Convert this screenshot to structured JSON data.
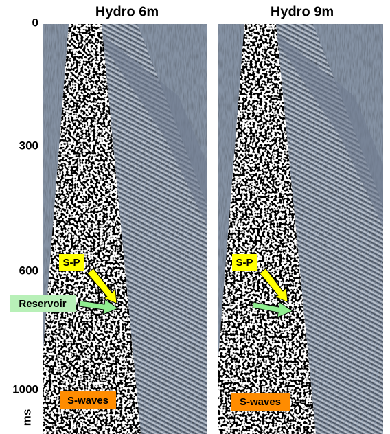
{
  "panels": [
    {
      "title": "Hydro 6m",
      "labels": {
        "sp": "S-P",
        "reservoir": "Reservoir",
        "swaves": "S-waves"
      }
    },
    {
      "title": "Hydro 9m",
      "labels": {
        "sp": "S-P",
        "swaves": "S-waves"
      }
    }
  ],
  "y_axis": {
    "ticks": [
      "0",
      "300",
      "600",
      "1000"
    ],
    "unit": "ms"
  }
}
